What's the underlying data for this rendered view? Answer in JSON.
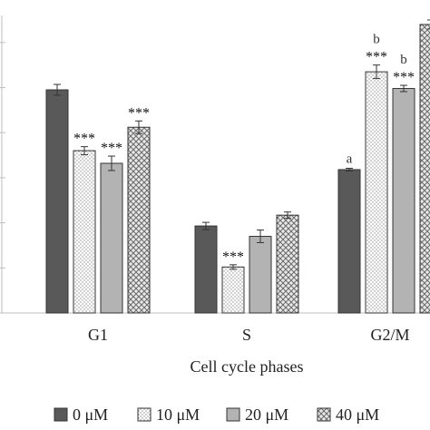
{
  "chart_data": {
    "type": "bar",
    "xlabel": "Cell cycle phases",
    "categories": [
      "G1",
      "S",
      "G2/M"
    ],
    "ylim": [
      0,
      65
    ],
    "gridlines": [
      0,
      10,
      20,
      30,
      40,
      50,
      60
    ],
    "grid": false,
    "legend_position": "bottom",
    "series": [
      {
        "name": "0 μM",
        "values": [
          49.5,
          19.3,
          31.8
        ],
        "errors": [
          1.2,
          0.8,
          0.3
        ],
        "colors_key": "s0"
      },
      {
        "name": "10 μM",
        "values": [
          36.0,
          10.2,
          53.5
        ],
        "errors": [
          0.9,
          0.5,
          1.5
        ],
        "colors_key": "s1"
      },
      {
        "name": "20 μM",
        "values": [
          33.2,
          17.0,
          49.8
        ],
        "errors": [
          1.6,
          1.4,
          0.7
        ],
        "colors_key": "s2"
      },
      {
        "name": "40 μM",
        "values": [
          41.2,
          21.7,
          64.0
        ],
        "errors": [
          1.4,
          0.7,
          1.0
        ],
        "colors_key": "s3"
      }
    ],
    "annotations": [
      {
        "series": 1,
        "category": 0,
        "text": "***"
      },
      {
        "series": 2,
        "category": 0,
        "text": "***"
      },
      {
        "series": 3,
        "category": 0,
        "text": "***"
      },
      {
        "series": 1,
        "category": 1,
        "text": "***"
      },
      {
        "series": 1,
        "category": 2,
        "text": "***"
      },
      {
        "series": 2,
        "category": 2,
        "text": "***"
      }
    ],
    "letters": [
      {
        "series": 0,
        "category": 2,
        "text": "a"
      },
      {
        "series": 1,
        "category": 2,
        "text": "b"
      },
      {
        "series": 2,
        "category": 2,
        "text": "b"
      }
    ]
  },
  "colors": {
    "s0": "#595959",
    "s1": "#ffffff",
    "s2": "#b3b3b3",
    "s3": "#d9d9d9",
    "axis": "#bfbfbf",
    "bar_stroke": "#333333"
  }
}
